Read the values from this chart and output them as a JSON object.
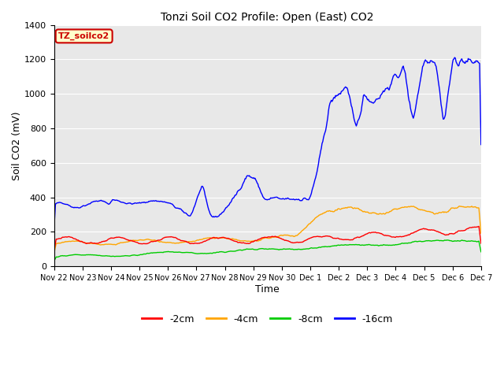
{
  "title": "Tonzi Soil CO2 Profile: Open (East) CO2",
  "xlabel": "Time",
  "ylabel": "Soil CO2 (mV)",
  "ylim": [
    0,
    1400
  ],
  "yticks": [
    0,
    200,
    400,
    600,
    800,
    1000,
    1200,
    1400
  ],
  "tick_labels": [
    "Nov 22",
    "Nov 23",
    "Nov 24",
    "Nov 25",
    "Nov 26",
    "Nov 27",
    "Nov 28",
    "Nov 29",
    "Nov 30",
    "Dec 1",
    "Dec 2",
    "Dec 3",
    "Dec 4",
    "Dec 5",
    "Dec 6",
    "Dec 7"
  ],
  "legend_labels": [
    "-2cm",
    "-4cm",
    "-8cm",
    "-16cm"
  ],
  "legend_colors": [
    "#ff0000",
    "#ffa500",
    "#00cc00",
    "#0000ff"
  ],
  "annotation_text": "TZ_soilco2",
  "annotation_color": "#cc0000",
  "annotation_bg": "#ffffcc",
  "fig_bg": "#ffffff",
  "plot_bg": "#e8e8e8",
  "grid_color": "#ffffff",
  "line_width": 1.0,
  "n_points": 600,
  "title_fontsize": 10,
  "tick_fontsize": 7,
  "axis_label_fontsize": 9
}
